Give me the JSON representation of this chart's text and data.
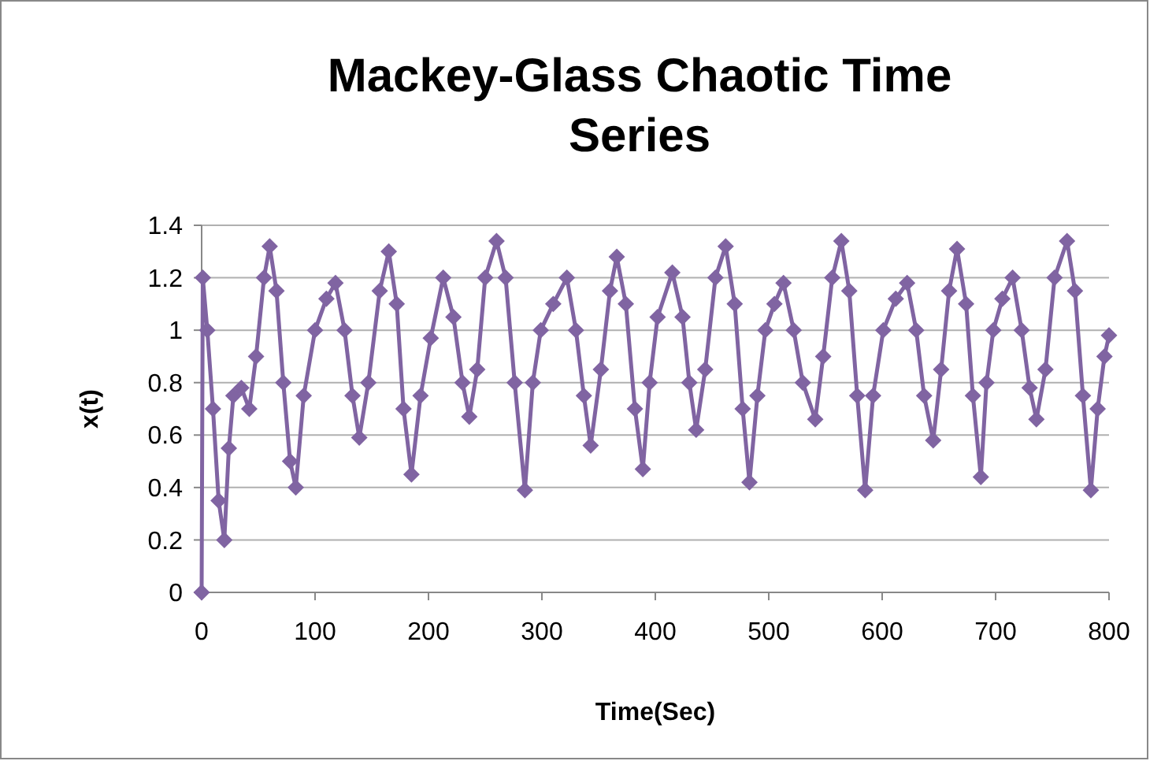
{
  "chart_data": {
    "type": "line",
    "title": "Mackey-Glass Chaotic Time Series",
    "xlabel": "Time(Sec)",
    "ylabel": "x(t)",
    "xlim": [
      0,
      800
    ],
    "xticks": [
      0,
      100,
      200,
      300,
      400,
      500,
      600,
      700,
      800
    ],
    "ylim": [
      0,
      1.4
    ],
    "yticks": [
      0,
      0.2,
      0.4,
      0.6,
      0.8,
      1,
      1.2,
      1.4
    ],
    "grid": "y",
    "marker": "diamond",
    "line_style": "solid",
    "series": [
      {
        "color": "#8064a2",
        "x": [
          0,
          1,
          5,
          10,
          15,
          20,
          24,
          28,
          35,
          42,
          48,
          55,
          60,
          66,
          72,
          78,
          83,
          90,
          100,
          110,
          118,
          126,
          133,
          139,
          147,
          157,
          165,
          172,
          178,
          185,
          193,
          202,
          213,
          222,
          230,
          236,
          243,
          250,
          260,
          268,
          276,
          285,
          292,
          299,
          310,
          322,
          330,
          337,
          343,
          352,
          360,
          366,
          374,
          382,
          389,
          395,
          402,
          415,
          424,
          430,
          436,
          444,
          453,
          462,
          470,
          477,
          483,
          490,
          497,
          505,
          513,
          522,
          530,
          541,
          548,
          556,
          564,
          571,
          578,
          585,
          592,
          601,
          612,
          622,
          630,
          637,
          645,
          652,
          659,
          666,
          674,
          680,
          687,
          692,
          698,
          706,
          715,
          723,
          730,
          736,
          744,
          752,
          763,
          770,
          777,
          784,
          790,
          796,
          800
        ],
        "values": [
          0,
          1.2,
          1.0,
          0.7,
          0.35,
          0.2,
          0.55,
          0.75,
          0.78,
          0.7,
          0.9,
          1.2,
          1.32,
          1.15,
          0.8,
          0.5,
          0.4,
          0.75,
          1.0,
          1.12,
          1.18,
          1.0,
          0.75,
          0.59,
          0.8,
          1.15,
          1.3,
          1.1,
          0.7,
          0.45,
          0.75,
          0.97,
          1.2,
          1.05,
          0.8,
          0.67,
          0.85,
          1.2,
          1.34,
          1.2,
          0.8,
          0.39,
          0.8,
          1.0,
          1.1,
          1.2,
          1.0,
          0.75,
          0.56,
          0.85,
          1.15,
          1.28,
          1.1,
          0.7,
          0.47,
          0.8,
          1.05,
          1.22,
          1.05,
          0.8,
          0.62,
          0.85,
          1.2,
          1.32,
          1.1,
          0.7,
          0.42,
          0.75,
          1.0,
          1.1,
          1.18,
          1.0,
          0.8,
          0.66,
          0.9,
          1.2,
          1.34,
          1.15,
          0.75,
          0.39,
          0.75,
          1.0,
          1.12,
          1.18,
          1.0,
          0.75,
          0.58,
          0.85,
          1.15,
          1.31,
          1.1,
          0.75,
          0.44,
          0.8,
          1.0,
          1.12,
          1.2,
          1.0,
          0.78,
          0.66,
          0.85,
          1.2,
          1.34,
          1.15,
          0.75,
          0.39,
          0.7,
          0.9,
          0.98
        ]
      }
    ]
  }
}
